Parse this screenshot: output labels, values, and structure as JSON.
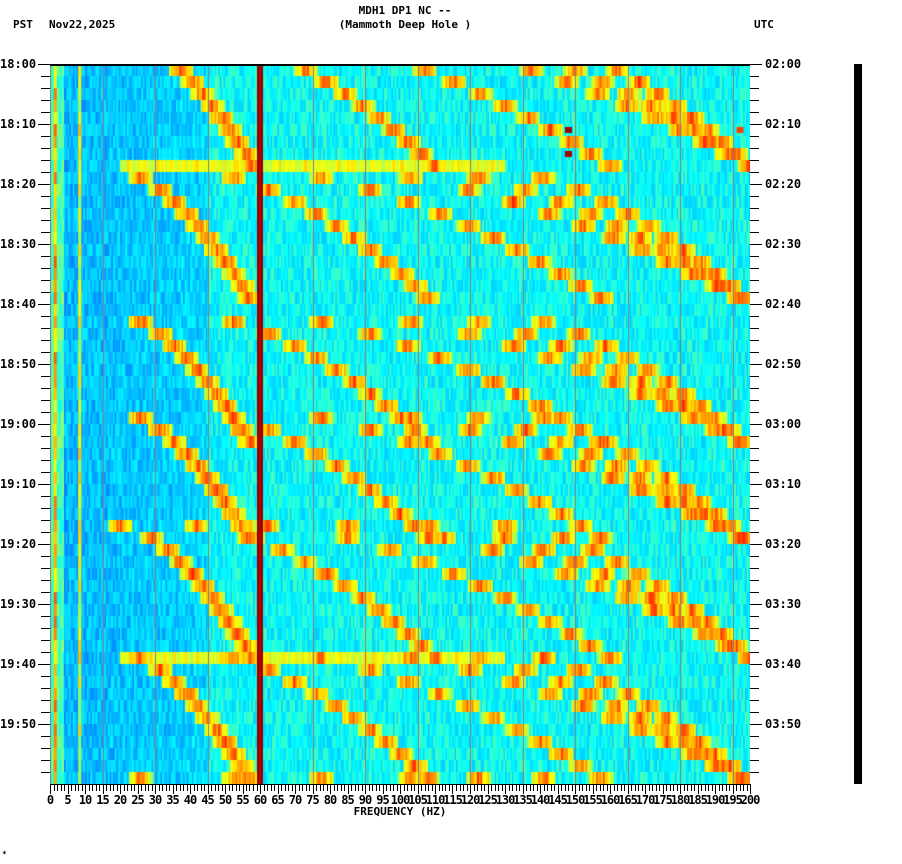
{
  "header": {
    "title_line1": "MDH1 DP1 NC --",
    "title_line2": "(Mammoth Deep Hole )",
    "left_timezone": "PST",
    "date": "Nov22,2025",
    "right_timezone": "UTC"
  },
  "footer": {
    "corner_mark": "✶"
  },
  "colors": {
    "background": "#ffffff",
    "axis": "#000000",
    "colormap": [
      "#0000a0",
      "#0050ff",
      "#00b4ff",
      "#00ffff",
      "#80ff80",
      "#ffff00",
      "#ff8000",
      "#ff0000",
      "#800000"
    ],
    "line_60hz": "#8b0000",
    "gridline": "#808080"
  },
  "chart_data": {
    "type": "heatmap",
    "title": "MDH1 DP1 NC -- (Mammoth Deep Hole )",
    "subtitle": "Spectrogram",
    "xlabel": "FREQUENCY (HZ)",
    "ylabel_left": "PST",
    "ylabel_right": "UTC",
    "date": "Nov22,2025",
    "xlim": [
      0,
      200
    ],
    "x_major_ticks": [
      0,
      5,
      10,
      15,
      20,
      25,
      30,
      35,
      40,
      45,
      50,
      55,
      60,
      65,
      70,
      75,
      80,
      85,
      90,
      95,
      100,
      105,
      110,
      115,
      120,
      125,
      130,
      135,
      140,
      145,
      150,
      155,
      160,
      165,
      170,
      175,
      180,
      185,
      190,
      195,
      200
    ],
    "x_minor_step": 1,
    "y_left_ticks": [
      "18:00",
      "18:10",
      "18:20",
      "18:30",
      "18:40",
      "18:50",
      "19:00",
      "19:10",
      "19:20",
      "19:30",
      "19:40",
      "19:50"
    ],
    "y_right_ticks": [
      "02:00",
      "02:10",
      "02:20",
      "02:30",
      "02:40",
      "02:50",
      "03:00",
      "03:10",
      "03:20",
      "03:30",
      "03:40",
      "03:50"
    ],
    "y_minor_step_minutes": 2,
    "time_span_minutes": 120,
    "rows": 60,
    "persistent_lines_hz": [
      {
        "freq": 60,
        "level": "max",
        "note": "strong continuous 60 Hz line"
      },
      {
        "freq": 1.5,
        "level": "high"
      },
      {
        "freq": 8.5,
        "level": "medium"
      }
    ],
    "gridlines_hz": [
      0,
      15,
      30,
      45,
      60,
      75,
      90,
      105,
      120,
      135,
      150,
      165,
      180,
      195
    ],
    "background_gradient": {
      "low_freq_hz": [
        5,
        45
      ],
      "low_level": "blue",
      "high_freq_level": "cyan"
    },
    "harmonic_sweeps": {
      "description": "Repeating upward-curving frequency sweeps (arcs) restarting every ~20 minutes",
      "cycle_starts_minutes": [
        -5,
        18,
        42,
        58,
        77,
        98,
        118
      ],
      "sweep_duration_minutes": 22,
      "arcs_start_hz": [
        20,
        42,
        62,
        85,
        108,
        130
      ],
      "arcs_end_hz": [
        58,
        110,
        160,
        200,
        200,
        200
      ]
    },
    "isolated_hotspots": [
      {
        "freq": 148,
        "minute": 11,
        "level": "high"
      },
      {
        "freq": 148,
        "minute": 15,
        "level": "high"
      },
      {
        "freq": 197,
        "minute": 11,
        "level": "medium"
      }
    ],
    "seismogram_trace": {
      "position": "right margin",
      "amplitude": "small, continuous"
    }
  }
}
